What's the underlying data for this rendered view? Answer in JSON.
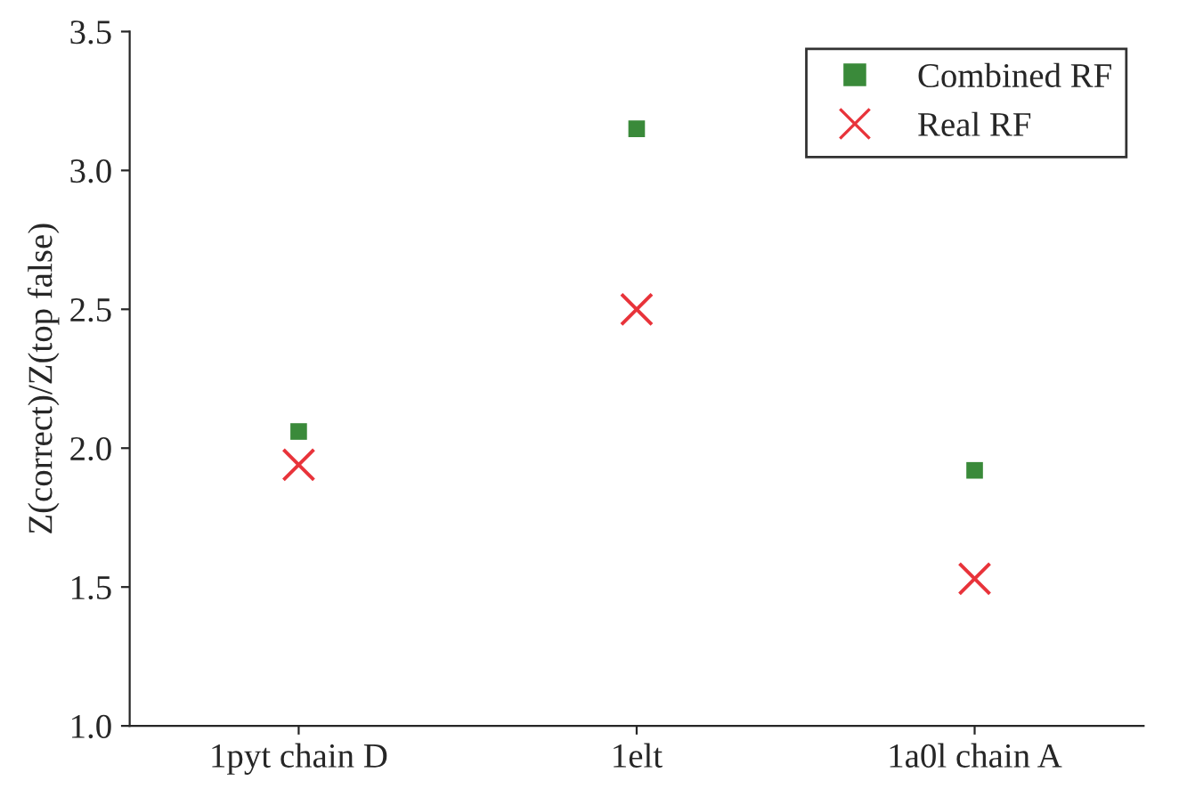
{
  "chart_data": {
    "type": "scatter",
    "ylabel": "Z(correct)/Z(top false)",
    "categories": [
      "1pyt chain D",
      "1elt",
      "1a0l chain A"
    ],
    "series": [
      {
        "name": "Combined RF",
        "color": "#3a8a3a",
        "marker": "square",
        "values": [
          2.06,
          3.15,
          1.92
        ]
      },
      {
        "name": "Real RF",
        "color": "#e8333a",
        "marker": "cross",
        "values": [
          1.94,
          2.5,
          1.53
        ]
      }
    ],
    "ylim": [
      1.0,
      3.5
    ],
    "yticks": [
      {
        "value": 1.0,
        "label": "1.0"
      },
      {
        "value": 1.5,
        "label": "1.5"
      },
      {
        "value": 2.0,
        "label": "2.0"
      },
      {
        "value": 2.5,
        "label": "2.5"
      },
      {
        "value": 3.0,
        "label": "3.0"
      },
      {
        "value": 3.5,
        "label": "3.5"
      }
    ],
    "grid": false,
    "legend": "top right"
  }
}
